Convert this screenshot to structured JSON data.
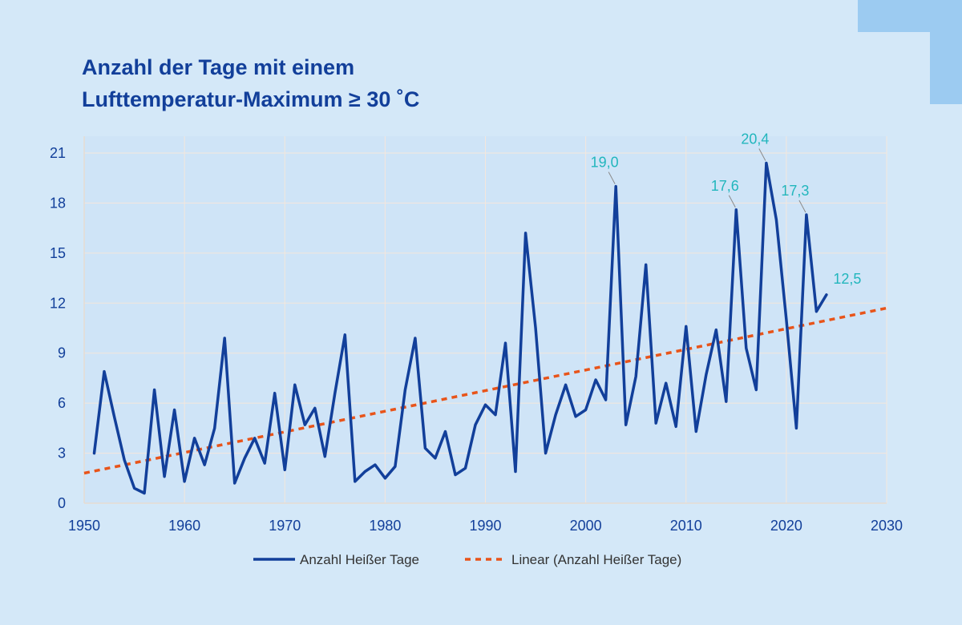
{
  "chart_data": {
    "type": "line",
    "title_lines": [
      "Anzahl der Tage mit einem",
      "Lufttemperatur-Maximum ≥ 30 ˚C"
    ],
    "xlabel": "",
    "ylabel": "",
    "xlim": [
      1950,
      2030
    ],
    "ylim": [
      0,
      21
    ],
    "x_ticks": [
      1950,
      1960,
      1970,
      1980,
      1990,
      2000,
      2010,
      2020,
      2030
    ],
    "y_ticks": [
      0,
      3,
      6,
      9,
      12,
      15,
      18,
      21
    ],
    "grid": true,
    "legend_position": "bottom-center",
    "series": [
      {
        "name": "Anzahl Heißer Tage",
        "color": "#123f9a",
        "style": "solid",
        "x": [
          1951,
          1952,
          1953,
          1954,
          1955,
          1956,
          1957,
          1958,
          1959,
          1960,
          1961,
          1962,
          1963,
          1964,
          1965,
          1966,
          1967,
          1968,
          1969,
          1970,
          1971,
          1972,
          1973,
          1974,
          1975,
          1976,
          1977,
          1978,
          1979,
          1980,
          1981,
          1982,
          1983,
          1984,
          1985,
          1986,
          1987,
          1988,
          1989,
          1990,
          1991,
          1992,
          1993,
          1994,
          1995,
          1996,
          1997,
          1998,
          1999,
          2000,
          2001,
          2002,
          2003,
          2004,
          2005,
          2006,
          2007,
          2008,
          2009,
          2010,
          2011,
          2012,
          2013,
          2014,
          2015,
          2016,
          2017,
          2018,
          2019,
          2020,
          2021,
          2022,
          2023,
          2024
        ],
        "y": [
          3.0,
          7.9,
          5.2,
          2.6,
          0.9,
          0.6,
          6.8,
          1.6,
          5.6,
          1.3,
          3.9,
          2.3,
          4.5,
          9.9,
          1.2,
          2.7,
          3.9,
          2.4,
          6.6,
          2.0,
          7.1,
          4.7,
          5.7,
          2.8,
          6.6,
          10.1,
          1.3,
          1.9,
          2.3,
          1.5,
          2.2,
          6.8,
          9.9,
          3.3,
          2.7,
          4.3,
          1.7,
          2.1,
          4.7,
          5.9,
          5.3,
          9.6,
          1.9,
          16.2,
          10.5,
          3.0,
          5.3,
          7.1,
          5.2,
          5.6,
          7.4,
          6.2,
          19.0,
          4.7,
          7.6,
          14.3,
          4.8,
          7.2,
          4.6,
          10.6,
          4.3,
          7.7,
          10.4,
          6.1,
          17.6,
          9.3,
          6.8,
          20.4,
          17.0,
          11.0,
          4.5,
          17.3,
          11.5,
          12.5
        ]
      },
      {
        "name": "Linear (Anzahl Heißer Tage)",
        "color": "#e8541a",
        "style": "dashed",
        "x": [
          1950,
          2030
        ],
        "y": [
          1.8,
          11.7
        ]
      }
    ],
    "annotations": [
      {
        "x": 2003,
        "y": 19.0,
        "text": "19,0"
      },
      {
        "x": 2015,
        "y": 17.6,
        "text": "17,6"
      },
      {
        "x": 2018,
        "y": 20.4,
        "text": "20,4"
      },
      {
        "x": 2022,
        "y": 17.3,
        "text": "17,3"
      },
      {
        "x": 2024,
        "y": 12.5,
        "text": "12,5"
      }
    ],
    "colors": {
      "background": "#d4e8f8",
      "plot_background": "#cfe4f7",
      "grid": "#f4e7dc",
      "title": "#123f9a",
      "tick_labels": "#123f9a",
      "annotation": "#22b6bd",
      "accent_corner": "#9ccbf1"
    }
  }
}
